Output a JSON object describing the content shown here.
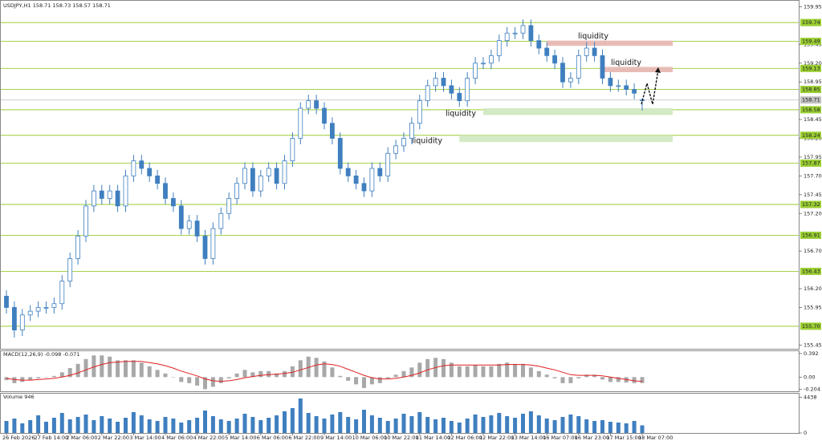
{
  "chart_data": [
    {
      "type": "candlestick",
      "title": "USDJPY,H1  158.71 158.73 158.57 158.71",
      "categories": [
        "26 Feb 2026",
        null,
        null,
        null,
        "27 Feb 14:00",
        null,
        null,
        null,
        "2 Mar 06:00",
        null,
        null,
        null,
        "2 Mar 22:00",
        null,
        null,
        null,
        "3 Mar 14:00",
        null,
        null,
        null,
        "4 Mar 06:00",
        null,
        null,
        null,
        "4 Mar 22:00",
        null,
        null,
        null,
        "5 Mar 14:00",
        null,
        null,
        null,
        "6 Mar 06:00",
        null,
        null,
        null,
        "6 Mar 22:00",
        null,
        null,
        null,
        "9 Mar 14:00",
        null,
        null,
        null,
        "10 Mar 06:00",
        null,
        null,
        null,
        "10 Mar 22:00",
        null,
        null,
        null,
        "11 Mar 14:00",
        null,
        null,
        null,
        "12 Mar 06:00",
        null,
        null,
        null,
        "12 Mar 22:00",
        null,
        null,
        null,
        "13 Mar 14:00",
        null,
        null,
        null,
        "16 Mar 07:00",
        null,
        null,
        null,
        "16 Mar 23:00",
        null,
        null,
        null,
        "17 Mar 15:00",
        null,
        null,
        null,
        "18 Mar 07:00"
      ],
      "open": [
        156.1,
        155.95,
        155.65,
        155.85,
        155.9,
        155.95,
        155.95,
        156.0,
        156.3,
        156.6,
        156.9,
        157.3,
        157.5,
        157.4,
        157.5,
        157.3,
        157.7,
        157.9,
        157.8,
        157.7,
        157.6,
        157.4,
        157.3,
        157.0,
        157.1,
        156.9,
        156.6,
        157.0,
        157.2,
        157.4,
        157.6,
        157.8,
        157.5,
        157.7,
        157.8,
        157.6,
        157.9,
        158.2,
        158.6,
        158.7,
        158.6,
        158.4,
        158.2,
        157.8,
        157.7,
        157.6,
        157.5,
        157.8,
        157.7,
        158.0,
        158.1,
        158.2,
        158.4,
        158.7,
        158.9,
        159.0,
        158.9,
        158.8,
        158.7,
        159.0,
        159.2,
        159.2,
        159.3,
        159.5,
        159.6,
        159.6,
        159.7,
        159.5,
        159.4,
        159.3,
        159.2,
        158.95,
        159.0,
        159.3,
        159.4,
        159.3,
        159.0,
        158.9,
        158.9,
        158.85,
        158.71
      ],
      "high": [
        156.18,
        156.03,
        155.93,
        155.98,
        156.03,
        156.03,
        156.08,
        156.38,
        156.68,
        156.98,
        157.38,
        157.58,
        157.58,
        157.58,
        157.58,
        157.78,
        157.98,
        157.98,
        157.88,
        157.78,
        157.68,
        157.48,
        157.38,
        157.18,
        157.18,
        156.98,
        157.08,
        157.28,
        157.48,
        157.68,
        157.88,
        157.88,
        157.78,
        157.88,
        157.88,
        157.98,
        158.28,
        158.68,
        158.78,
        158.78,
        158.68,
        158.48,
        158.28,
        157.88,
        157.78,
        157.68,
        157.88,
        157.88,
        158.08,
        158.18,
        158.28,
        158.48,
        158.78,
        158.98,
        159.08,
        159.08,
        158.98,
        158.88,
        159.08,
        159.28,
        159.28,
        159.38,
        159.58,
        159.68,
        159.68,
        159.78,
        159.78,
        159.58,
        159.48,
        159.38,
        159.28,
        159.08,
        159.38,
        159.48,
        159.48,
        159.38,
        159.08,
        158.98,
        158.98,
        158.93,
        158.73
      ],
      "low": [
        155.87,
        155.55,
        155.57,
        155.77,
        155.82,
        155.87,
        155.87,
        155.92,
        156.22,
        156.52,
        156.82,
        157.22,
        157.32,
        157.32,
        157.22,
        157.22,
        157.62,
        157.72,
        157.62,
        157.52,
        157.32,
        157.22,
        156.92,
        156.92,
        156.82,
        156.52,
        156.52,
        156.92,
        157.12,
        157.32,
        157.52,
        157.42,
        157.42,
        157.62,
        157.52,
        157.52,
        157.82,
        158.12,
        158.52,
        158.52,
        158.32,
        158.12,
        157.72,
        157.62,
        157.52,
        157.42,
        157.42,
        157.62,
        157.62,
        157.92,
        158.02,
        158.12,
        158.32,
        158.62,
        158.82,
        158.82,
        158.72,
        158.62,
        158.62,
        158.92,
        159.12,
        159.12,
        159.22,
        159.42,
        159.52,
        159.52,
        159.42,
        159.32,
        159.22,
        159.12,
        158.87,
        158.87,
        158.92,
        159.22,
        159.22,
        158.92,
        158.82,
        158.82,
        158.77,
        158.72,
        158.57
      ],
      "close": [
        155.95,
        155.65,
        155.85,
        155.9,
        155.95,
        155.95,
        156.0,
        156.3,
        156.6,
        156.9,
        157.3,
        157.5,
        157.4,
        157.5,
        157.3,
        157.7,
        157.9,
        157.8,
        157.7,
        157.6,
        157.4,
        157.3,
        157.0,
        157.1,
        156.9,
        156.6,
        157.0,
        157.2,
        157.4,
        157.6,
        157.8,
        157.5,
        157.7,
        157.8,
        157.6,
        157.9,
        158.2,
        158.6,
        158.7,
        158.6,
        158.4,
        158.2,
        157.8,
        157.7,
        157.6,
        157.5,
        157.8,
        157.7,
        158.0,
        158.1,
        158.2,
        158.4,
        158.7,
        158.9,
        159.0,
        158.9,
        158.8,
        158.7,
        159.0,
        159.2,
        159.2,
        159.3,
        159.5,
        159.6,
        159.6,
        159.7,
        159.5,
        159.4,
        159.3,
        159.2,
        158.95,
        159.0,
        159.3,
        159.4,
        159.3,
        159.0,
        158.9,
        158.9,
        158.85,
        158.8,
        158.71
      ],
      "color": "#3f7fbf",
      "ylim": [
        155.4,
        160.04
      ],
      "yticks": [
        159.95,
        159.45,
        {
          "value": 159.2,
          "label": "159.20"
        },
        158.95,
        158.45,
        {
          "value": 158.2,
          "label": "158.20"
        },
        157.95,
        {
          "value": 157.7,
          "label": "157.70"
        },
        157.45,
        {
          "value": 157.2,
          "label": "157.20"
        },
        {
          "value": 156.7,
          "label": "156.70"
        },
        {
          "value": 156.2,
          "label": "156.20"
        },
        155.95,
        155.45
      ],
      "levels": [
        159.74,
        159.49,
        159.13,
        158.85,
        158.58,
        158.24,
        157.87,
        157.32,
        156.91,
        156.43,
        {
          "value": 155.7,
          "label": "155.70"
        }
      ],
      "level_color": "#9acd32",
      "last_price": 158.71,
      "zones": [
        {
          "label": "liquidity",
          "ylim": [
            159.43,
            159.5
          ],
          "from": 68,
          "color": "#e8bcb6"
        },
        {
          "label": "liquidity",
          "ylim": [
            159.08,
            159.15
          ],
          "from": 75,
          "color": "#e8bcb6"
        },
        {
          "label": "liquidity",
          "ylim": [
            158.51,
            158.6
          ],
          "from": 60,
          "color": "#d3eac4"
        },
        {
          "label": "liquidity",
          "ylim": [
            158.15,
            158.24
          ],
          "from": 57,
          "color": "#d3eac4"
        }
      ]
    },
    {
      "type": "macd",
      "title": "MACD(12,26,9) -0.098 -0.071",
      "series": [
        {
          "name": "MACD",
          "color": "#a8a8a8",
          "values": [
            -0.05,
            -0.1,
            -0.08,
            -0.05,
            -0.02,
            0.0,
            0.02,
            0.08,
            0.15,
            0.22,
            0.3,
            0.36,
            0.36,
            0.34,
            0.28,
            0.28,
            0.28,
            0.24,
            0.18,
            0.12,
            0.06,
            0.0,
            -0.08,
            -0.1,
            -0.14,
            -0.2,
            -0.16,
            -0.1,
            -0.02,
            0.06,
            0.12,
            0.08,
            0.1,
            0.1,
            0.06,
            0.1,
            0.18,
            0.28,
            0.34,
            0.32,
            0.26,
            0.16,
            0.02,
            -0.06,
            -0.12,
            -0.18,
            -0.12,
            -0.1,
            -0.02,
            0.04,
            0.1,
            0.16,
            0.24,
            0.3,
            0.32,
            0.3,
            0.24,
            0.18,
            0.18,
            0.2,
            0.18,
            0.18,
            0.22,
            0.24,
            0.22,
            0.22,
            0.16,
            0.1,
            0.04,
            -0.02,
            -0.1,
            -0.1,
            -0.02,
            0.04,
            0.04,
            -0.04,
            -0.08,
            -0.08,
            -0.09,
            -0.1,
            -0.098
          ]
        },
        {
          "name": "Signal",
          "color": "#e02020",
          "values": [
            -0.02,
            -0.04,
            -0.05,
            -0.05,
            -0.04,
            -0.03,
            -0.02,
            0.0,
            0.03,
            0.07,
            0.12,
            0.17,
            0.21,
            0.24,
            0.25,
            0.26,
            0.26,
            0.26,
            0.24,
            0.22,
            0.19,
            0.15,
            0.1,
            0.06,
            0.02,
            -0.03,
            -0.06,
            -0.07,
            -0.06,
            -0.04,
            -0.01,
            0.01,
            0.03,
            0.04,
            0.05,
            0.06,
            0.08,
            0.12,
            0.16,
            0.2,
            0.22,
            0.21,
            0.18,
            0.13,
            0.08,
            0.03,
            -0.01,
            -0.03,
            -0.03,
            -0.02,
            0.0,
            0.03,
            0.07,
            0.12,
            0.16,
            0.19,
            0.2,
            0.2,
            0.2,
            0.2,
            0.2,
            0.2,
            0.2,
            0.21,
            0.21,
            0.21,
            0.2,
            0.18,
            0.15,
            0.12,
            0.08,
            0.04,
            0.03,
            0.03,
            0.03,
            0.02,
            0.0,
            -0.02,
            -0.04,
            -0.06,
            -0.071
          ]
        }
      ],
      "ylim": [
        -0.235,
        0.444
      ],
      "yticks": [
        0.392,
        {
          "value": 0,
          "label": "0.00"
        },
        -0.204
      ]
    },
    {
      "type": "volume",
      "title": "Volume 946",
      "color": "#3f7fbf",
      "values": [
        1500,
        1800,
        1200,
        1600,
        2200,
        1400,
        1900,
        2500,
        1700,
        2000,
        2300,
        1600,
        2100,
        1800,
        1400,
        1900,
        2600,
        2200,
        1700,
        1500,
        2000,
        1800,
        1300,
        1600,
        1900,
        2800,
        2100,
        1700,
        1500,
        1800,
        2400,
        2000,
        1600,
        1900,
        2200,
        2700,
        3100,
        4300,
        2500,
        2100,
        1800,
        2300,
        2600,
        2000,
        1700,
        2900,
        2200,
        1900,
        1500,
        1800,
        2400,
        2100,
        2600,
        2000,
        1700,
        1900,
        1500,
        1300,
        1800,
        2300,
        2000,
        2200,
        2500,
        2100,
        1900,
        2400,
        2700,
        2200,
        1800,
        1600,
        2000,
        2300,
        2100,
        1700,
        1500,
        1600,
        1400,
        1300,
        1200,
        1500,
        946
      ],
      "ylim": [
        0,
        5000
      ],
      "yticks": [
        4438,
        0
      ]
    }
  ]
}
